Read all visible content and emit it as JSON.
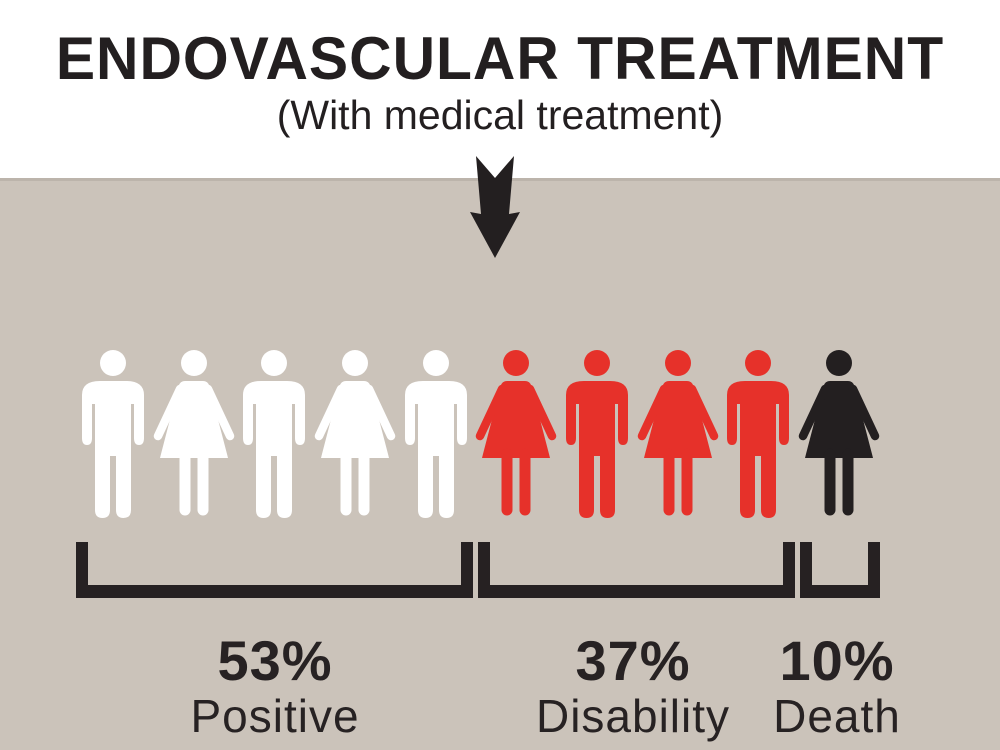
{
  "header": {
    "title": "ENDOVASCULAR TREATMENT",
    "subtitle": "(With medical treatment)"
  },
  "colors": {
    "background_panel": "#cbc3ba",
    "positive_figure": "#ffffff",
    "disability_figure": "#e6312a",
    "death_figure": "#231f20",
    "text": "#272223",
    "bracket": "#262122"
  },
  "icons": {
    "arrow": "down-arrow-icon",
    "figure_unit": "1 figure = 10% of patients"
  },
  "chart_data": {
    "type": "pictogram",
    "title": "ENDOVASCULAR TREATMENT",
    "subtitle": "(With medical treatment)",
    "categories": [
      "Positive",
      "Disability",
      "Death"
    ],
    "values": [
      53,
      37,
      10
    ],
    "value_labels": [
      "53%",
      "37%",
      "10%"
    ],
    "figure_counts": [
      5,
      4,
      1
    ],
    "figure_colors": [
      "#ffffff",
      "#e6312a",
      "#231f20"
    ],
    "legend_position": "bottom",
    "figures": [
      {
        "gender": "male",
        "group": "Positive",
        "color": "#ffffff"
      },
      {
        "gender": "female",
        "group": "Positive",
        "color": "#ffffff"
      },
      {
        "gender": "male",
        "group": "Positive",
        "color": "#ffffff"
      },
      {
        "gender": "female",
        "group": "Positive",
        "color": "#ffffff"
      },
      {
        "gender": "male",
        "group": "Positive",
        "color": "#ffffff"
      },
      {
        "gender": "female",
        "group": "Disability",
        "color": "#e6312a"
      },
      {
        "gender": "male",
        "group": "Disability",
        "color": "#e6312a"
      },
      {
        "gender": "female",
        "group": "Disability",
        "color": "#e6312a"
      },
      {
        "gender": "male",
        "group": "Disability",
        "color": "#e6312a"
      },
      {
        "gender": "female",
        "group": "Death",
        "color": "#231f20"
      }
    ]
  }
}
